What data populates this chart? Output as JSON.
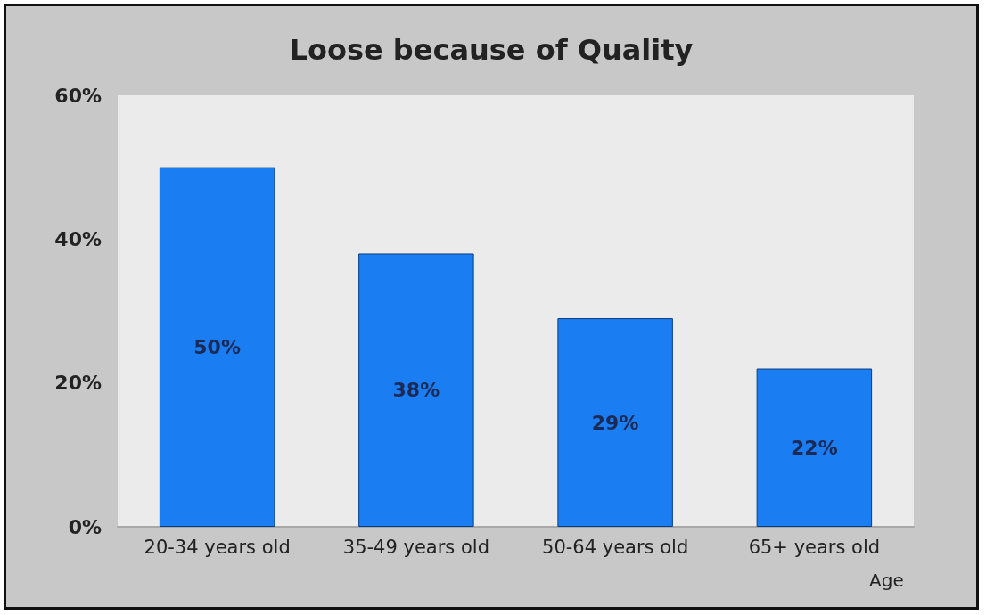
{
  "chart_data": {
    "type": "bar",
    "title": "Loose because of Quality",
    "xlabel": "Age",
    "categories": [
      "20-34 years old",
      "35-49 years old",
      "50-64 years old",
      "65+ years old"
    ],
    "values": [
      50,
      38,
      29,
      22
    ],
    "color": "#1a7ef2",
    "value_labels": [
      "50%",
      "38%",
      "29%",
      "22%"
    ],
    "ylim": [
      0,
      60
    ],
    "yticks": [
      {
        "value": 0,
        "label": "0%"
      },
      {
        "value": 20,
        "label": "20%"
      },
      {
        "value": 40,
        "label": "40%"
      },
      {
        "value": 60,
        "label": "60%"
      }
    ],
    "grid": false
  }
}
